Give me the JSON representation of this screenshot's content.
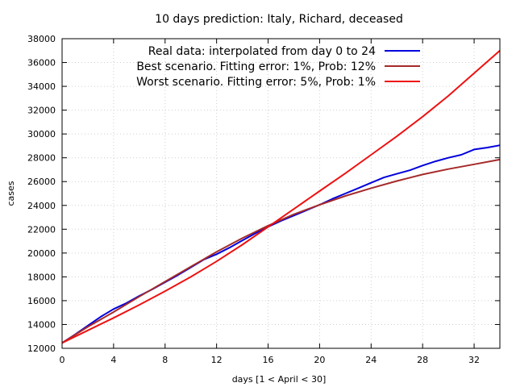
{
  "chart_data": {
    "type": "line",
    "title": "10 days prediction: Italy, Richard, deceased",
    "xlabel": "days [1 < April < 30]",
    "ylabel": "cases",
    "xlim": [
      0,
      34
    ],
    "ylim": [
      12000,
      38000
    ],
    "xticks": [
      0,
      4,
      8,
      12,
      16,
      20,
      24,
      28,
      32
    ],
    "yticks": [
      12000,
      14000,
      16000,
      18000,
      20000,
      22000,
      24000,
      26000,
      28000,
      30000,
      32000,
      34000,
      36000,
      38000
    ],
    "grid": true,
    "legend_position": "top-right",
    "series": [
      {
        "name": "Real data: interpolated from day 0 to 24",
        "color": "#0000dd",
        "x": [
          0,
          1,
          2,
          3,
          4,
          5,
          6,
          7,
          8,
          9,
          10,
          11,
          12,
          13,
          14,
          15,
          16,
          17,
          18,
          19,
          20,
          21,
          22,
          23,
          24,
          25,
          26,
          27,
          28,
          29,
          30,
          31,
          32,
          33,
          34
        ],
        "y": [
          12450,
          13150,
          13900,
          14650,
          15300,
          15800,
          16400,
          16950,
          17550,
          18150,
          18800,
          19450,
          19900,
          20450,
          21050,
          21650,
          22200,
          22700,
          23150,
          23600,
          24050,
          24550,
          25000,
          25450,
          25900,
          26350,
          26650,
          26950,
          27350,
          27700,
          28000,
          28250,
          28700,
          28850,
          29050
        ]
      },
      {
        "name": "Best scenario. Fitting error: 1%, Prob: 12%",
        "color": "#a52a2a",
        "x": [
          0,
          2,
          4,
          6,
          8,
          10,
          12,
          14,
          16,
          18,
          20,
          22,
          24,
          26,
          28,
          30,
          32,
          34
        ],
        "y": [
          12450,
          13800,
          15050,
          16350,
          17600,
          18850,
          20100,
          21250,
          22300,
          23250,
          24050,
          24800,
          25450,
          26050,
          26600,
          27050,
          27450,
          27850
        ]
      },
      {
        "name": "Worst scenario. Fitting error: 5%, Prob: 1%",
        "color": "#ee1111",
        "x": [
          0,
          2,
          4,
          6,
          8,
          10,
          12,
          14,
          16,
          18,
          20,
          22,
          24,
          26,
          28,
          30,
          32,
          34
        ],
        "y": [
          12450,
          13500,
          14550,
          15650,
          16800,
          18000,
          19300,
          20700,
          22200,
          23700,
          25200,
          26700,
          28250,
          29800,
          31450,
          33200,
          35100,
          37000
        ]
      }
    ]
  }
}
